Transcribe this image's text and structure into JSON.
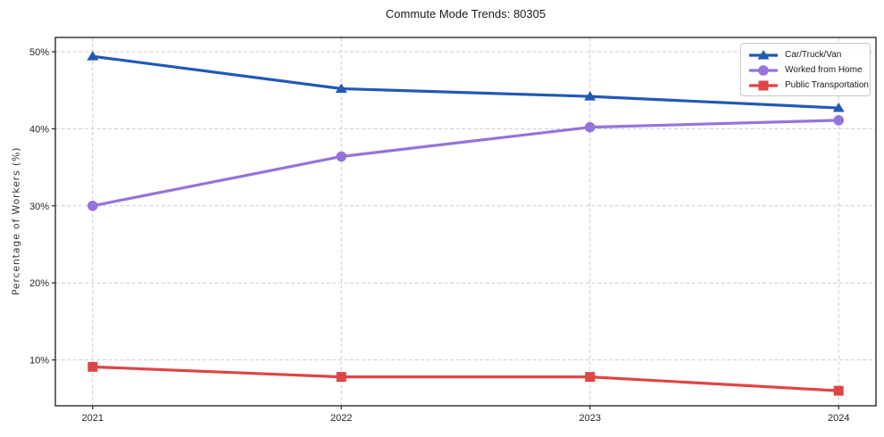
{
  "chart_data": {
    "type": "line",
    "title": "Commute Mode Trends: 80305",
    "xlabel": "",
    "ylabel": "Percentage of Workers (%)",
    "x": [
      2021,
      2022,
      2023,
      2024
    ],
    "x_tick_labels": [
      "2021",
      "2022",
      "2023",
      "2024"
    ],
    "y_ticks": [
      10,
      20,
      30,
      40,
      50
    ],
    "y_tick_labels": [
      "10%",
      "20%",
      "30%",
      "40%",
      "50%"
    ],
    "xlim": [
      2020.85,
      2024.15
    ],
    "ylim": [
      4.05,
      51.85
    ],
    "grid": "dashed-both-axes",
    "grid_color": "#cbcbcb",
    "legend_position": "upper right",
    "series": [
      {
        "name": "Car/Truck/Van",
        "color": "#2159b5",
        "marker": "triangle-up",
        "values": [
          49.4,
          45.2,
          44.2,
          42.7
        ]
      },
      {
        "name": "Worked from Home",
        "color": "#9673db",
        "marker": "circle",
        "values": [
          30.0,
          36.4,
          40.2,
          41.1
        ]
      },
      {
        "name": "Public Transportation",
        "color": "#df4545",
        "marker": "square",
        "values": [
          9.1,
          7.8,
          7.8,
          6.0
        ]
      }
    ]
  }
}
